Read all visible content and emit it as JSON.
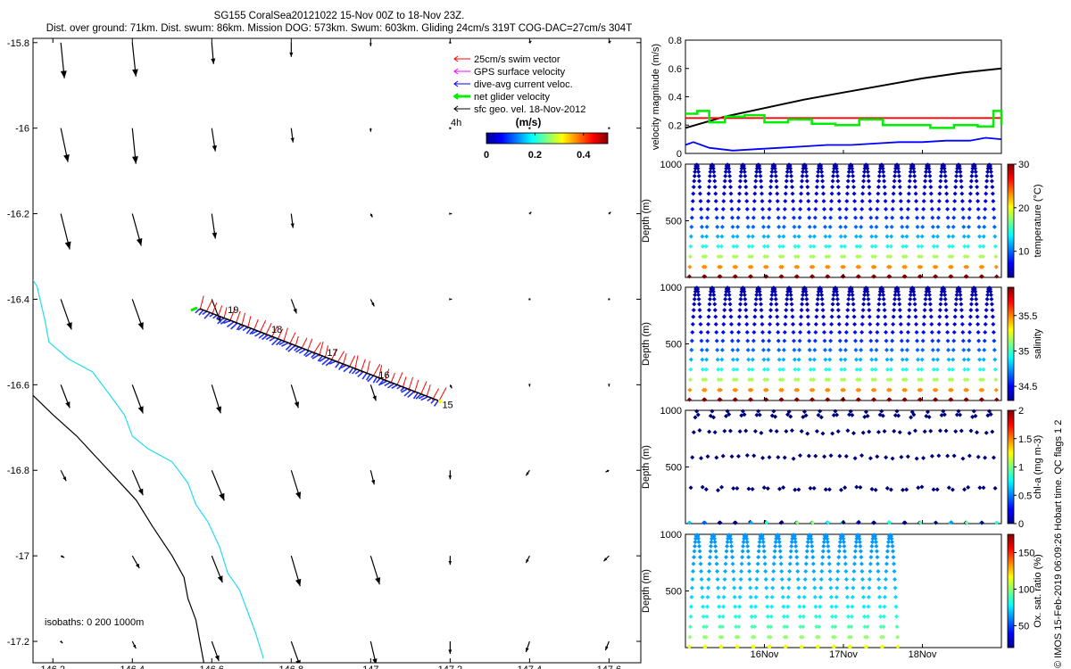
{
  "header": {
    "line1": "SG155 CoralSea20121022 15-Nov 00Z to 18-Nov 23Z.",
    "line2": "Dist. over ground: 71km. Dist. swum: 86km. Mission DOG: 573km. Swum: 603km. Gliding 24cm/s 319T COG-DAC=27cm/s 304T"
  },
  "credit": "© IMOS 15-Feb-2019 06:09:26 Hobart time. QC flags 1  2",
  "map": {
    "xlim": [
      146.15,
      147.68
    ],
    "ylim": [
      -17.25,
      -15.79
    ],
    "x_ticks": [
      146.2,
      146.4,
      146.6,
      146.8,
      147,
      147.2,
      147.4,
      147.6
    ],
    "x_tick_labels": [
      "146.2",
      "146.4",
      "146.6",
      "146.8",
      "147",
      "147.2",
      "147.4",
      "147.6"
    ],
    "y_ticks": [
      -15.8,
      -16,
      -16.2,
      -16.4,
      -16.6,
      -16.8,
      -17,
      -17.2
    ],
    "y_tick_labels": [
      "-15.8",
      "-16",
      "-16.2",
      "-16.4",
      "-16.6",
      "-16.8",
      "-17",
      "-17.2"
    ],
    "legend": [
      {
        "label": "25cm/s swim vector",
        "color": "#ff0000"
      },
      {
        "label": "GPS surface velocity",
        "color": "#ff00ff"
      },
      {
        "label": "dive-avg current veloc.",
        "color": "#0000ff"
      },
      {
        "label": "net glider velocity",
        "color": "#00ee00"
      },
      {
        "label": "sfc geo. vel. 18-Nov-2012",
        "color": "#000000"
      }
    ],
    "colorbar": {
      "label": "(m/s)",
      "ticks": [
        "0",
        "0.2",
        "0.4"
      ],
      "range": [
        0,
        0.5
      ]
    },
    "scale_label": "4h",
    "isobath_label": "isobaths: 0   200  1000m",
    "day_labels": [
      {
        "text": "19",
        "lon": 146.64,
        "lat": -16.432
      },
      {
        "text": "18",
        "lon": 146.75,
        "lat": -16.478
      },
      {
        "text": "17",
        "lon": 146.89,
        "lat": -16.532
      },
      {
        "text": "16",
        "lon": 147.02,
        "lat": -16.585
      },
      {
        "text": "15",
        "lon": 147.18,
        "lat": -16.655
      }
    ],
    "track": [
      [
        147.17,
        -16.637
      ],
      [
        146.57,
        -16.422
      ]
    ],
    "coast_cyan": [
      [
        146.15,
        -16.355
      ],
      [
        146.16,
        -16.37
      ],
      [
        146.18,
        -16.45
      ],
      [
        146.19,
        -16.5
      ],
      [
        146.24,
        -16.54
      ],
      [
        146.3,
        -16.57
      ],
      [
        146.34,
        -16.62
      ],
      [
        146.38,
        -16.67
      ],
      [
        146.4,
        -16.72
      ],
      [
        146.44,
        -16.75
      ],
      [
        146.5,
        -16.78
      ],
      [
        146.54,
        -16.83
      ],
      [
        146.56,
        -16.88
      ],
      [
        146.59,
        -16.92
      ],
      [
        146.62,
        -16.98
      ],
      [
        146.64,
        -17.04
      ],
      [
        146.67,
        -17.08
      ],
      [
        146.69,
        -17.13
      ],
      [
        146.71,
        -17.18
      ],
      [
        146.73,
        -17.24
      ]
    ],
    "coast_black": [
      [
        146.15,
        -16.625
      ],
      [
        146.2,
        -16.67
      ],
      [
        146.26,
        -16.72
      ],
      [
        146.31,
        -16.77
      ],
      [
        146.36,
        -16.82
      ],
      [
        146.41,
        -16.87
      ],
      [
        146.45,
        -16.93
      ],
      [
        146.5,
        -17
      ],
      [
        146.53,
        -17.05
      ],
      [
        146.54,
        -17.1
      ],
      [
        146.56,
        -17.15
      ],
      [
        146.57,
        -17.2
      ],
      [
        146.58,
        -17.25
      ]
    ],
    "vectors_cols": [
      146.22,
      146.4,
      146.6,
      146.8,
      147,
      147.2,
      147.4,
      147.6
    ],
    "vectors_rows": [
      -15.8,
      -16.0,
      -16.2,
      -16.4,
      -16.6,
      -16.8,
      -17.0,
      -17.2
    ],
    "vectors_uv": [
      [
        [
          0.02,
          -0.2
        ],
        [
          0.02,
          -0.19
        ],
        [
          0.01,
          -0.12
        ],
        [
          0.0,
          -0.08
        ],
        [
          0.0,
          -0.02
        ],
        [
          0.0,
          0.0
        ],
        [
          0.01,
          0.01
        ],
        [
          0.01,
          0.01
        ]
      ],
      [
        [
          0.04,
          -0.19
        ],
        [
          0.02,
          -0.2
        ],
        [
          0.02,
          -0.13
        ],
        [
          0.01,
          -0.08
        ],
        [
          0.0,
          -0.02
        ],
        [
          0.0,
          0.0
        ],
        [
          0.0,
          0.0
        ],
        [
          0.0,
          0.0
        ]
      ],
      [
        [
          0.05,
          -0.2
        ],
        [
          0.05,
          -0.18
        ],
        [
          0.02,
          -0.14
        ],
        [
          0.01,
          -0.08
        ],
        [
          0.01,
          -0.02
        ],
        [
          0.01,
          0.0
        ],
        [
          0.01,
          0.01
        ],
        [
          0.01,
          0.01
        ]
      ],
      [
        [
          0.06,
          -0.17
        ],
        [
          0.06,
          -0.17
        ],
        [
          0.05,
          -0.13
        ],
        [
          0.03,
          -0.08
        ],
        [
          0.02,
          -0.04
        ],
        [
          0.01,
          0.0
        ],
        [
          0.0,
          0.0
        ],
        [
          0.0,
          0.0
        ]
      ],
      [
        [
          0.05,
          -0.13
        ],
        [
          0.06,
          -0.16
        ],
        [
          0.05,
          -0.16
        ],
        [
          0.04,
          -0.13
        ],
        [
          0.03,
          -0.09
        ],
        [
          0.01,
          -0.02
        ],
        [
          0.0,
          -0.01
        ],
        [
          0.0,
          -0.01
        ]
      ],
      [
        [
          0.03,
          -0.06
        ],
        [
          0.06,
          -0.14
        ],
        [
          0.07,
          -0.17
        ],
        [
          0.05,
          -0.16
        ],
        [
          0.02,
          -0.08
        ],
        [
          0.0,
          -0.05
        ],
        [
          -0.02,
          -0.03
        ],
        [
          -0.02,
          -0.01
        ]
      ],
      [
        [
          0.02,
          -0.01
        ],
        [
          0.04,
          -0.07
        ],
        [
          0.06,
          -0.15
        ],
        [
          0.05,
          -0.17
        ],
        [
          0.05,
          -0.16
        ],
        [
          0.0,
          -0.05
        ],
        [
          -0.02,
          -0.04
        ],
        [
          -0.03,
          -0.03
        ]
      ],
      [
        [
          0.01,
          -0.01
        ],
        [
          0.02,
          -0.04
        ],
        [
          0.04,
          -0.11
        ],
        [
          0.05,
          -0.14
        ],
        [
          0.03,
          -0.13
        ],
        [
          0.0,
          -0.07
        ],
        [
          -0.02,
          -0.06
        ],
        [
          -0.02,
          -0.05
        ]
      ]
    ]
  },
  "time_axis": {
    "range_days": [
      15,
      19
    ],
    "ticks": [
      16,
      17,
      18
    ],
    "tick_labels": [
      "16Nov",
      "17Nov",
      "18Nov"
    ]
  },
  "chart_data": [
    {
      "type": "line",
      "ylabel": "velocity magnitude (m/s)",
      "ylim": [
        0,
        0.8
      ],
      "yticks": [
        0,
        0.2,
        0.4,
        0.6,
        0.8
      ],
      "series": [
        {
          "color": "#000000",
          "x": [
            15.0,
            15.5,
            16.0,
            16.5,
            17.0,
            17.5,
            18.0,
            18.5,
            19.0
          ],
          "y": [
            0.18,
            0.26,
            0.32,
            0.38,
            0.43,
            0.48,
            0.53,
            0.57,
            0.6
          ]
        },
        {
          "color": "#ff0000",
          "x": [
            15.0,
            19.0
          ],
          "y": [
            0.25,
            0.25
          ]
        },
        {
          "color": "#00ee00",
          "x": [
            15.0,
            15.15,
            15.3,
            15.5,
            15.75,
            16.0,
            16.3,
            16.6,
            16.9,
            17.2,
            17.5,
            17.8,
            18.1,
            18.4,
            18.7,
            18.9,
            19.0
          ],
          "y": [
            0.28,
            0.3,
            0.22,
            0.26,
            0.27,
            0.22,
            0.24,
            0.21,
            0.2,
            0.24,
            0.2,
            0.2,
            0.18,
            0.2,
            0.19,
            0.3,
            0.2
          ]
        },
        {
          "color": "#0000ff",
          "x": [
            15.0,
            15.1,
            15.3,
            15.6,
            15.9,
            16.2,
            16.5,
            16.8,
            17.1,
            17.4,
            17.7,
            18.0,
            18.3,
            18.6,
            18.8,
            19.0
          ],
          "y": [
            0.06,
            0.08,
            0.04,
            0.02,
            0.03,
            0.04,
            0.05,
            0.06,
            0.06,
            0.07,
            0.08,
            0.08,
            0.09,
            0.09,
            0.11,
            0.1
          ]
        }
      ]
    },
    {
      "type": "scatter",
      "ylabel": "Depth (m)",
      "clabel": "temperature (°C)",
      "ylim": [
        1000,
        0
      ],
      "yticks": [
        500,
        1000
      ],
      "clim": [
        4,
        30
      ],
      "cticks": [
        10,
        20,
        30
      ],
      "profile": {
        "start_day": 15.05,
        "end_day": 18.95,
        "dives": 20,
        "max_depth": 1000,
        "vmin": 4,
        "vmax": 30
      }
    },
    {
      "type": "scatter",
      "ylabel": "Depth (m)",
      "clabel": "salinity",
      "ylim": [
        1000,
        0
      ],
      "yticks": [
        500,
        1000
      ],
      "clim": [
        34.3,
        35.9
      ],
      "cticks": [
        34.5,
        35,
        35.5
      ],
      "profile": {
        "start_day": 15.05,
        "end_day": 18.95,
        "dives": 20,
        "max_depth": 1000,
        "vmin": 34.3,
        "vmax": 35.9
      }
    },
    {
      "type": "scatter",
      "ylabel": "Depth (m)",
      "clabel": "chl-a (mg m-3)",
      "ylim": [
        1000,
        0
      ],
      "yticks": [
        500,
        1000
      ],
      "clim": [
        0,
        2
      ],
      "cticks": [
        0,
        0.5,
        1,
        1.5,
        2
      ],
      "profile": {
        "start_day": 15.05,
        "end_day": 18.95,
        "dives": 20,
        "max_depth": 1000,
        "sparse": true
      }
    },
    {
      "type": "scatter",
      "ylabel": "Depth (m)",
      "clabel": "Ox. sat. ratio (%)",
      "ylim": [
        1000,
        0
      ],
      "yticks": [
        500,
        1000
      ],
      "clim": [
        20,
        175
      ],
      "cticks": [
        50,
        100,
        150
      ],
      "profile": {
        "start_day": 15.05,
        "end_day": 17.7,
        "dives": 13,
        "max_depth": 1000,
        "vmin": 60,
        "vmax": 115
      }
    }
  ]
}
